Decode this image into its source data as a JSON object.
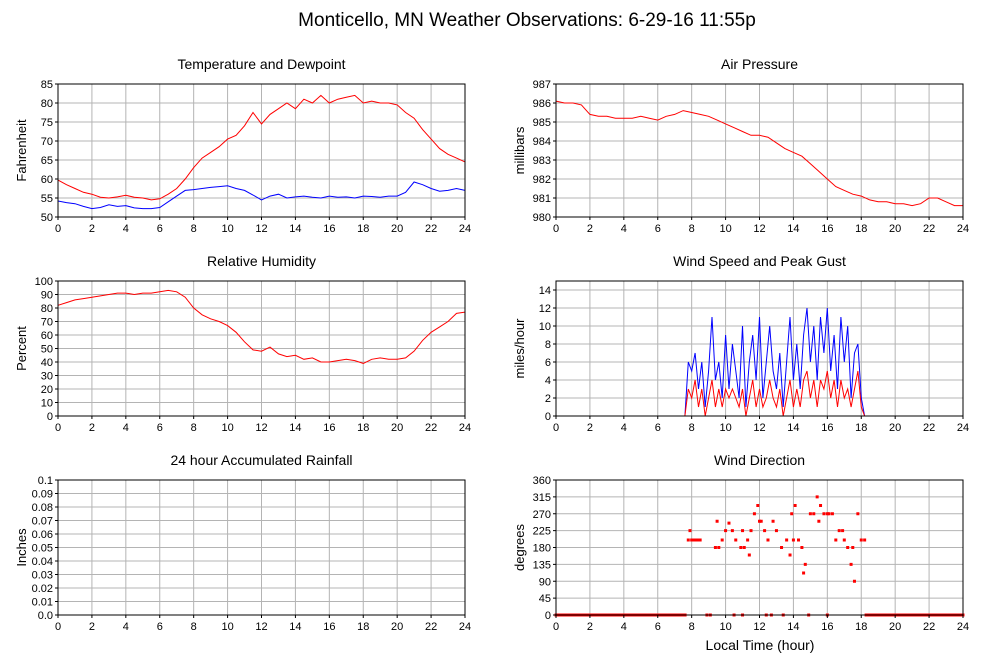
{
  "page": {
    "title": "Monticello, MN Weather Observations: 6-29-16 11:55p",
    "xlabel": "Local Time (hour)"
  },
  "chart_data": [
    {
      "id": "temp",
      "type": "line",
      "title": "Temperature and Dewpoint",
      "ylabel": "Fahrenheit",
      "xlim": [
        0,
        24
      ],
      "ylim": [
        50,
        85
      ],
      "yticks": [
        50,
        55,
        60,
        65,
        70,
        75,
        80,
        85
      ],
      "ytick_labels": [
        "50",
        "55",
        "60",
        "65",
        "70",
        "75",
        "80",
        "85"
      ],
      "xticks": [
        0,
        2,
        4,
        6,
        8,
        10,
        12,
        14,
        16,
        18,
        20,
        22,
        24
      ],
      "grid": true,
      "series": [
        {
          "color": "#ff0000",
          "x": [
            0,
            0.5,
            1,
            1.5,
            2,
            2.5,
            3,
            3.5,
            4,
            4.5,
            5,
            5.5,
            6,
            6.5,
            7,
            7.5,
            8,
            8.5,
            9,
            9.5,
            10,
            10.5,
            11,
            11.5,
            12,
            12.5,
            13,
            13.5,
            14,
            14.5,
            15,
            15.5,
            16,
            16.5,
            17,
            17.5,
            18,
            18.5,
            19,
            19.5,
            20,
            20.5,
            21,
            21.5,
            22,
            22.5,
            23,
            23.5,
            24
          ],
          "y": [
            59.7,
            58.5,
            57.5,
            56.5,
            56,
            55.2,
            55,
            55.3,
            55.7,
            55.2,
            55,
            54.5,
            54.8,
            56,
            57.5,
            60,
            63,
            65.5,
            67,
            68.5,
            70.5,
            71.5,
            74,
            77.5,
            74.5,
            77,
            78.5,
            80,
            78.5,
            81,
            80,
            82,
            80,
            81,
            81.5,
            82,
            80,
            80.5,
            80,
            80,
            79.5,
            77.5,
            76,
            73,
            70.5,
            68,
            66.5,
            65.5,
            64.5
          ]
        },
        {
          "color": "#0000ff",
          "x": [
            0,
            0.5,
            1,
            1.5,
            2,
            2.5,
            3,
            3.5,
            4,
            4.5,
            5,
            5.5,
            6,
            6.5,
            7,
            7.5,
            8,
            8.5,
            9,
            9.5,
            10,
            10.5,
            11,
            11.5,
            12,
            12.5,
            13,
            13.5,
            14,
            14.5,
            15,
            15.5,
            16,
            16.5,
            17,
            17.5,
            18,
            18.5,
            19,
            19.5,
            20,
            20.5,
            21,
            21.5,
            22,
            22.5,
            23,
            23.5,
            24
          ],
          "y": [
            54.2,
            53.8,
            53.5,
            52.8,
            52.2,
            52.5,
            53.2,
            52.8,
            53,
            52.4,
            52.2,
            52.2,
            52.5,
            54,
            55.5,
            57,
            57.2,
            57.5,
            57.8,
            58,
            58.2,
            57.5,
            57,
            55.8,
            54.5,
            55.5,
            56,
            55,
            55.3,
            55.5,
            55.2,
            55,
            55.5,
            55.2,
            55.3,
            55,
            55.5,
            55.4,
            55.2,
            55.5,
            55.5,
            56.5,
            59.2,
            58.5,
            57.5,
            56.8,
            57,
            57.5,
            57
          ]
        }
      ]
    },
    {
      "id": "pressure",
      "type": "line",
      "title": "Air Pressure",
      "ylabel": "millibars",
      "xlim": [
        0,
        24
      ],
      "ylim": [
        980,
        987
      ],
      "yticks": [
        980,
        981,
        982,
        983,
        984,
        985,
        986,
        987
      ],
      "ytick_labels": [
        "980",
        "981",
        "982",
        "983",
        "984",
        "985",
        "986",
        "987"
      ],
      "xticks": [
        0,
        2,
        4,
        6,
        8,
        10,
        12,
        14,
        16,
        18,
        20,
        22,
        24
      ],
      "grid": true,
      "series": [
        {
          "color": "#ff0000",
          "x": [
            0,
            0.5,
            1,
            1.5,
            2,
            2.5,
            3,
            3.5,
            4,
            4.5,
            5,
            5.5,
            6,
            6.5,
            7,
            7.5,
            8,
            8.5,
            9,
            9.5,
            10,
            10.5,
            11,
            11.5,
            12,
            12.5,
            13,
            13.5,
            14,
            14.5,
            15,
            15.5,
            16,
            16.5,
            17,
            17.5,
            18,
            18.5,
            19,
            19.5,
            20,
            20.5,
            21,
            21.5,
            22,
            22.5,
            23,
            23.5,
            24
          ],
          "y": [
            986.1,
            986.0,
            986.0,
            985.9,
            985.4,
            985.3,
            985.3,
            985.2,
            985.2,
            985.2,
            985.3,
            985.2,
            985.1,
            985.3,
            985.4,
            985.6,
            985.5,
            985.4,
            985.3,
            985.1,
            984.9,
            984.7,
            984.5,
            984.3,
            984.3,
            984.2,
            983.9,
            983.6,
            983.4,
            983.2,
            982.8,
            982.4,
            982.0,
            981.6,
            981.4,
            981.2,
            981.1,
            980.9,
            980.8,
            980.8,
            980.7,
            980.7,
            980.6,
            980.7,
            981.0,
            981.0,
            980.8,
            980.6,
            980.6
          ]
        }
      ]
    },
    {
      "id": "humidity",
      "type": "line",
      "title": "Relative Humidity",
      "ylabel": "Percent",
      "xlim": [
        0,
        24
      ],
      "ylim": [
        0,
        100
      ],
      "yticks": [
        0,
        10,
        20,
        30,
        40,
        50,
        60,
        70,
        80,
        90,
        100
      ],
      "ytick_labels": [
        "0",
        "10",
        "20",
        "30",
        "40",
        "50",
        "60",
        "70",
        "80",
        "90",
        "100"
      ],
      "xticks": [
        0,
        2,
        4,
        6,
        8,
        10,
        12,
        14,
        16,
        18,
        20,
        22,
        24
      ],
      "grid": true,
      "series": [
        {
          "color": "#ff0000",
          "x": [
            0,
            0.5,
            1,
            1.5,
            2,
            2.5,
            3,
            3.5,
            4,
            4.5,
            5,
            5.5,
            6,
            6.5,
            7,
            7.5,
            8,
            8.5,
            9,
            9.5,
            10,
            10.5,
            11,
            11.5,
            12,
            12.5,
            13,
            13.5,
            14,
            14.5,
            15,
            15.5,
            16,
            16.5,
            17,
            17.5,
            18,
            18.5,
            19,
            19.5,
            20,
            20.5,
            21,
            21.5,
            22,
            22.5,
            23,
            23.5,
            24
          ],
          "y": [
            82,
            84,
            86,
            87,
            88,
            89,
            90,
            91,
            91,
            90,
            91,
            91,
            92,
            93,
            92,
            88,
            80,
            75,
            72,
            70,
            67,
            62,
            55,
            49,
            48,
            51,
            46,
            44,
            45,
            42,
            43,
            40,
            40,
            41,
            42,
            41,
            39,
            42,
            43,
            42,
            42,
            43,
            48,
            56,
            62,
            66,
            70,
            76,
            77
          ]
        }
      ]
    },
    {
      "id": "wind",
      "type": "line",
      "title": "Wind Speed and Peak Gust",
      "ylabel": "miles/hour",
      "xlim": [
        0,
        24
      ],
      "ylim": [
        0,
        15
      ],
      "yticks": [
        0,
        2,
        4,
        6,
        8,
        10,
        12,
        14
      ],
      "ytick_labels": [
        "0",
        "2",
        "4",
        "6",
        "8",
        "10",
        "12",
        "14"
      ],
      "xticks": [
        0,
        2,
        4,
        6,
        8,
        10,
        12,
        14,
        16,
        18,
        20,
        22,
        24
      ],
      "grid": true,
      "series": [
        {
          "color": "#0000ff",
          "x": [
            0,
            7.6,
            7.8,
            8.0,
            8.2,
            8.4,
            8.6,
            8.8,
            9.0,
            9.2,
            9.4,
            9.6,
            9.8,
            10.0,
            10.2,
            10.4,
            10.6,
            10.8,
            11.0,
            11.2,
            11.4,
            11.6,
            11.8,
            12.0,
            12.2,
            12.4,
            12.6,
            12.8,
            13.0,
            13.2,
            13.4,
            13.6,
            13.8,
            14.0,
            14.2,
            14.4,
            14.6,
            14.8,
            15.0,
            15.2,
            15.4,
            15.6,
            15.8,
            16.0,
            16.2,
            16.4,
            16.6,
            16.8,
            17.0,
            17.2,
            17.4,
            17.6,
            17.8,
            18.0,
            18.2,
            24
          ],
          "y": [
            0,
            0,
            6,
            5,
            7,
            3,
            6,
            1,
            5,
            11,
            4,
            6,
            2,
            9,
            3,
            8,
            5,
            2,
            10,
            1,
            6,
            9,
            4,
            11,
            2,
            6,
            10,
            5,
            3,
            7,
            1,
            6,
            11,
            4,
            8,
            3,
            9,
            12,
            6,
            10,
            4,
            11,
            7,
            12,
            5,
            9,
            3,
            11,
            6,
            10,
            2,
            7,
            8,
            2,
            0,
            0
          ]
        },
        {
          "color": "#ff0000",
          "x": [
            0,
            7.6,
            7.8,
            8.0,
            8.2,
            8.4,
            8.6,
            8.8,
            9.0,
            9.2,
            9.4,
            9.6,
            9.8,
            10.0,
            10.2,
            10.4,
            10.6,
            10.8,
            11.0,
            11.2,
            11.4,
            11.6,
            11.8,
            12.0,
            12.2,
            12.4,
            12.6,
            12.8,
            13.0,
            13.2,
            13.4,
            13.6,
            13.8,
            14.0,
            14.2,
            14.4,
            14.6,
            14.8,
            15.0,
            15.2,
            15.4,
            15.6,
            15.8,
            16.0,
            16.2,
            16.4,
            16.6,
            16.8,
            17.0,
            17.2,
            17.4,
            17.6,
            17.8,
            18.0,
            18.2,
            24
          ],
          "y": [
            0,
            0,
            3,
            2,
            4,
            1,
            3,
            0,
            2,
            4,
            1,
            3,
            1,
            3,
            2,
            3,
            2,
            1,
            3,
            0,
            2,
            4,
            1,
            3,
            1,
            2,
            4,
            2,
            1,
            3,
            0,
            2,
            4,
            1,
            3,
            1,
            4,
            5,
            2,
            4,
            1,
            4,
            3,
            5,
            2,
            4,
            1,
            4,
            2,
            3,
            1,
            3,
            5,
            1,
            0,
            0
          ]
        }
      ]
    },
    {
      "id": "rain",
      "type": "line",
      "title": "24 hour Accumulated Rainfall",
      "ylabel": "Inches",
      "xlim": [
        0,
        24
      ],
      "ylim": [
        0,
        0.1
      ],
      "yticks": [
        0,
        0.01,
        0.02,
        0.03,
        0.04,
        0.05,
        0.06,
        0.07,
        0.08,
        0.09,
        0.1
      ],
      "ytick_labels": [
        "0.0",
        "0.01",
        "0.02",
        "0.03",
        "0.04",
        "0.05",
        "0.06",
        "0.07",
        "0.08",
        "0.09",
        "0.1"
      ],
      "xticks": [
        0,
        2,
        4,
        6,
        8,
        10,
        12,
        14,
        16,
        18,
        20,
        22,
        24
      ],
      "grid": true,
      "series": [
        {
          "color": "#ff0000",
          "x": [
            0,
            24
          ],
          "y": [
            0,
            0
          ]
        }
      ]
    },
    {
      "id": "direction",
      "type": "scatter",
      "title": "Wind Direction",
      "ylabel": "degrees",
      "xlim": [
        0,
        24
      ],
      "ylim": [
        0,
        360
      ],
      "yticks": [
        0,
        45,
        90,
        135,
        180,
        225,
        270,
        315,
        360
      ],
      "ytick_labels": [
        "0",
        "45",
        "90",
        "135",
        "180",
        "225",
        "270",
        "315",
        "360"
      ],
      "xticks": [
        0,
        2,
        4,
        6,
        8,
        10,
        12,
        14,
        16,
        18,
        20,
        22,
        24
      ],
      "grid": true,
      "series": [
        {
          "color": "#ff0000",
          "x": [
            7.8,
            8.1,
            7.9,
            8.0,
            8.2,
            8.3,
            8.4,
            8.5,
            9.4,
            9.6,
            9.8,
            10.0,
            10.2,
            10.4,
            10.6,
            9.5,
            10.9,
            11.1,
            11.3,
            11.5,
            11.7,
            11.9,
            12.1,
            12.3,
            11.0,
            12.0,
            12.5,
            13.0,
            13.3,
            13.6,
            13.9,
            14.1,
            14.3,
            13.8,
            14.5,
            14.7,
            15.0,
            15.2,
            15.4,
            15.6,
            15.8,
            16.0,
            16.3,
            16.5,
            16.7,
            16.9,
            17.2,
            17.4,
            17.6,
            17.8,
            18.0,
            18.2,
            14.0,
            15.5,
            12.8,
            16.1,
            14.6,
            17.0,
            17.5,
            11.4
          ],
          "y": [
            200,
            200,
            225,
            200,
            200,
            200,
            200,
            200,
            180,
            180,
            200,
            225,
            245,
            225,
            200,
            250,
            180,
            180,
            200,
            225,
            270,
            292,
            250,
            225,
            225,
            250,
            200,
            225,
            180,
            200,
            270,
            292,
            200,
            160,
            180,
            135,
            270,
            270,
            315,
            292,
            270,
            270,
            270,
            200,
            225,
            225,
            180,
            135,
            90,
            270,
            200,
            200,
            200,
            250,
            250,
            270,
            112,
            200,
            180,
            160
          ]
        },
        {
          "color": "#ff0000",
          "x": [
            0,
            0.5,
            1,
            1.5,
            2,
            2.5,
            3,
            3.5,
            4,
            4.5,
            5,
            5.5,
            6,
            6.5,
            7,
            7.5,
            8.9,
            9.1,
            10.5,
            11.0,
            12.4,
            12.7,
            13.4,
            14.9,
            16.0,
            18.3,
            18.6,
            19,
            19.5,
            20,
            20.5,
            21,
            21.5,
            22,
            22.5,
            23,
            23.5,
            24
          ],
          "y": [
            0,
            0,
            0,
            0,
            0,
            0,
            0,
            0,
            0,
            0,
            0,
            0,
            0,
            0,
            0,
            0,
            0,
            0,
            0,
            0,
            0,
            0,
            0,
            0,
            0,
            0,
            0,
            0,
            0,
            0,
            0,
            0,
            0,
            0,
            0,
            0,
            0,
            0
          ]
        }
      ]
    }
  ]
}
